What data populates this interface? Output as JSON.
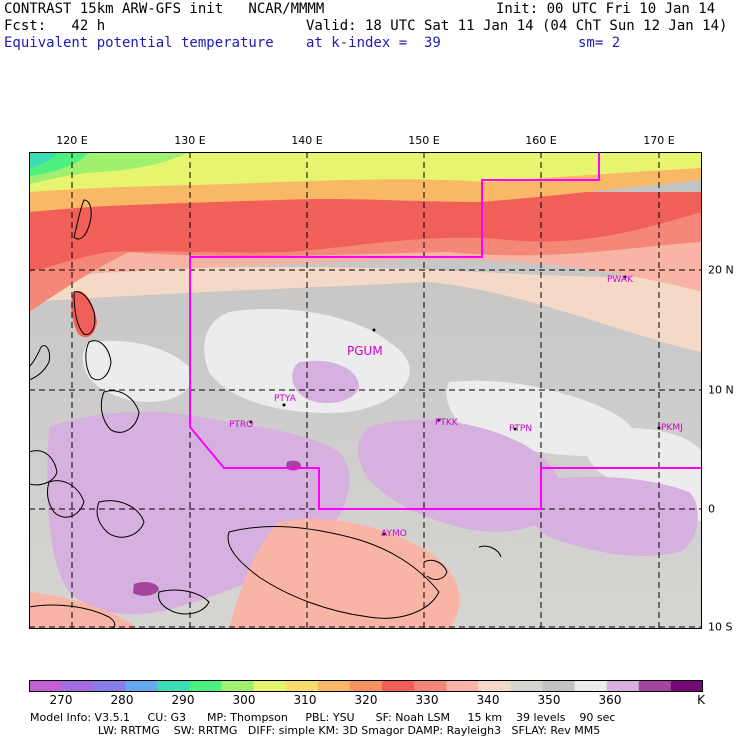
{
  "header": {
    "line1_left": "CONTRAST 15km ARW-GFS init   NCAR/MMMM",
    "line1_right": "Init: 00 UTC Fri 10 Jan 14",
    "line2_left": "Fcst:   42 h",
    "line2_right": "Valid: 18 UTC Sat 11 Jan 14 (04 ChT Sun 12 Jan 14)",
    "line3_left": "Equivalent potential temperature",
    "line3_mid": "at k-index =  39",
    "line3_right": "sm= 2"
  },
  "map": {
    "lon_labels": [
      "120 E",
      "130 E",
      "140 E",
      "150 E",
      "160 E",
      "170 E"
    ],
    "lat_labels": [
      "20 N",
      "10 N",
      "0",
      "10 S"
    ],
    "stations": [
      {
        "id": "PGUM"
      },
      {
        "id": "PTYA"
      },
      {
        "id": "PTRO"
      },
      {
        "id": "PTKK"
      },
      {
        "id": "PTPN"
      },
      {
        "id": "PKMJ"
      },
      {
        "id": "PWAK"
      },
      {
        "id": "AYMO"
      }
    ]
  },
  "colorbar": {
    "colors": [
      "#c55ed4",
      "#a56ce0",
      "#8a7ee8",
      "#64a8f0",
      "#3cdcb4",
      "#50f080",
      "#a0f070",
      "#e6f470",
      "#f6dc6c",
      "#f8b866",
      "#f6925e",
      "#f06058",
      "#f58778",
      "#f8b4a4",
      "#f3d9c6",
      "#d7d5d2",
      "#c4c2c2",
      "#ececec",
      "#d6b0de",
      "#a5449e",
      "#760a74"
    ],
    "labels": [
      "270",
      "280",
      "290",
      "300",
      "310",
      "320",
      "330",
      "340",
      "350",
      "360",
      "K"
    ]
  },
  "footer": {
    "line1": "Model Info: V3.5.1     CU: G3      MP: Thompson     PBL: YSU      SF: Noah LSM     15 km    39 levels    90 sec",
    "line2": "LW: RRTMG    SW: RRTMG   DIFF: simple KM: 3D Smagor DAMP: Rayleigh3   SFLAY: Rev MM5"
  }
}
